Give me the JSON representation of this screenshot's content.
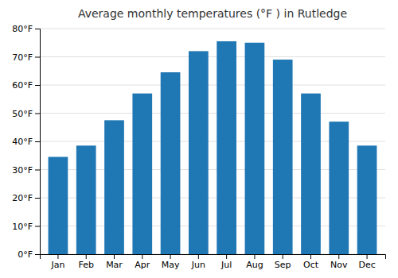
{
  "chart_data": {
    "type": "bar",
    "title": "Average monthly temperatures (°F ) in Rutledge",
    "categories": [
      "Jan",
      "Feb",
      "Mar",
      "Apr",
      "May",
      "Jun",
      "Jul",
      "Aug",
      "Sep",
      "Oct",
      "Nov",
      "Dec"
    ],
    "values": [
      34.5,
      38.5,
      47.5,
      57,
      64.5,
      72,
      75.5,
      75,
      69,
      57,
      47,
      38.5
    ],
    "ylim": [
      0,
      80
    ],
    "yticks": [
      {
        "value": 0,
        "label": "0°F"
      },
      {
        "value": 10,
        "label": "10°F"
      },
      {
        "value": 20,
        "label": "20°F"
      },
      {
        "value": 30,
        "label": "30°F"
      },
      {
        "value": 40,
        "label": "40°F"
      },
      {
        "value": 50,
        "label": "50°F"
      },
      {
        "value": 60,
        "label": "60°F"
      },
      {
        "value": 70,
        "label": "70°F"
      },
      {
        "value": 80,
        "label": "80°F"
      }
    ],
    "grid": true
  }
}
